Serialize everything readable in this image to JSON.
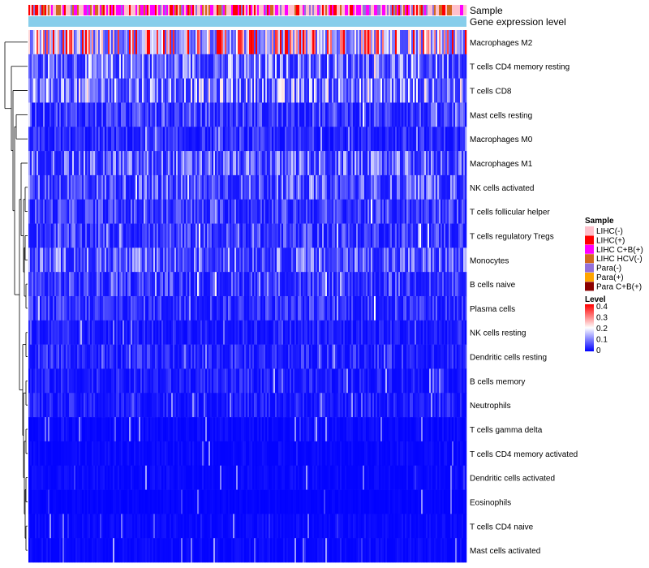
{
  "chart_data": {
    "type": "heatmap",
    "title": "",
    "annotation_tracks": [
      "Sample",
      "Gene expression level"
    ],
    "rows": [
      {
        "label": "Macrophages M2",
        "mean": 0.28
      },
      {
        "label": "T cells CD4 memory resting",
        "mean": 0.11
      },
      {
        "label": "T cells CD8",
        "mean": 0.13
      },
      {
        "label": "Mast cells resting",
        "mean": 0.06
      },
      {
        "label": "Macrophages M0",
        "mean": 0.04
      },
      {
        "label": "Macrophages M1",
        "mean": 0.09
      },
      {
        "label": "NK cells activated",
        "mean": 0.08
      },
      {
        "label": "T cells follicular helper",
        "mean": 0.06
      },
      {
        "label": "T cells regulatory  Tregs",
        "mean": 0.06
      },
      {
        "label": "Monocytes",
        "mean": 0.09
      },
      {
        "label": "B cells naive",
        "mean": 0.06
      },
      {
        "label": "Plasma cells",
        "mean": 0.05
      },
      {
        "label": "NK cells resting",
        "mean": 0.03
      },
      {
        "label": "Dendritic cells resting",
        "mean": 0.04
      },
      {
        "label": "B cells memory",
        "mean": 0.03
      },
      {
        "label": "Neutrophils",
        "mean": 0.03
      },
      {
        "label": "T cells gamma delta",
        "mean": 0.01
      },
      {
        "label": "T cells CD4 memory activated",
        "mean": 0.01
      },
      {
        "label": "Dendritic cells activated",
        "mean": 0.01
      },
      {
        "label": "Eosinophils",
        "mean": 0.005
      },
      {
        "label": "T cells CD4 naive",
        "mean": 0.01
      },
      {
        "label": "Mast cells activated",
        "mean": 0.01
      }
    ],
    "sample_legend": {
      "title": "Sample",
      "entries": [
        {
          "label": "LIHC(-)",
          "color": "#FFC0CB"
        },
        {
          "label": "LIHC(+)",
          "color": "#FF0000"
        },
        {
          "label": "LIHC C+B(+)",
          "color": "#FF00FF"
        },
        {
          "label": "LIHC HCV(-)",
          "color": "#D2691E"
        },
        {
          "label": "Para(-)",
          "color": "#9370DB"
        },
        {
          "label": "Para(+)",
          "color": "#FFA500"
        },
        {
          "label": "Para C+B(+)",
          "color": "#8B0000"
        }
      ]
    },
    "level_legend": {
      "title": "Level",
      "ticks": [
        "0.4",
        "0.3",
        "0.2",
        "0.1",
        "0"
      ],
      "range": [
        0,
        0.4
      ],
      "colors": [
        "#0000FF",
        "#FFFFFF",
        "#FF0000"
      ]
    },
    "gene_expression_color": "#87CEEB"
  }
}
